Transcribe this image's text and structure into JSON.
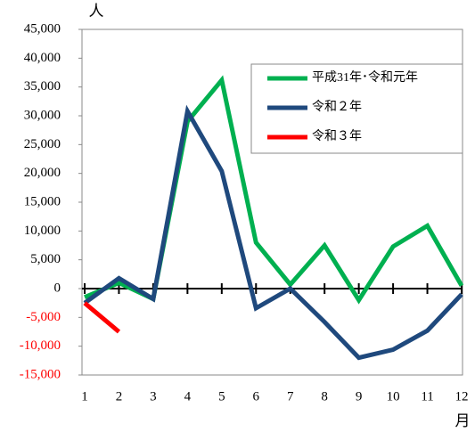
{
  "chart_data": {
    "type": "line",
    "y_unit": "人",
    "x_unit": "月",
    "categories": [
      "1",
      "2",
      "3",
      "4",
      "5",
      "6",
      "7",
      "8",
      "9",
      "10",
      "11",
      "12"
    ],
    "series": [
      {
        "name": "平成31年･令和元年",
        "color": "#00b050",
        "values": [
          -1500,
          1000,
          -1800,
          29000,
          36200,
          8000,
          700,
          7500,
          -2000,
          7300,
          10900,
          500
        ]
      },
      {
        "name": "令和２年",
        "color": "#1f497d",
        "values": [
          -2500,
          1800,
          -1800,
          30800,
          20400,
          -3400,
          0,
          -5800,
          -12000,
          -10600,
          -7300,
          -1000
        ]
      },
      {
        "name": "令和３年",
        "color": "#ff0000",
        "values": [
          -2500,
          -7500,
          null,
          null,
          null,
          null,
          null,
          null,
          null,
          null,
          null,
          null
        ]
      }
    ],
    "ylim": [
      -15000,
      45000
    ],
    "yticks": [
      {
        "value": -15000,
        "label": "-15,000"
      },
      {
        "value": -10000,
        "label": "-10,000"
      },
      {
        "value": -5000,
        "label": "-5,000"
      },
      0,
      {
        "value": 5000,
        "label": "5,000"
      },
      {
        "value": 10000,
        "label": "10,000"
      },
      {
        "value": 15000,
        "label": "15,000"
      },
      {
        "value": 20000,
        "label": "20,000"
      },
      {
        "value": 25000,
        "label": "25,000"
      },
      {
        "value": 30000,
        "label": "30,000"
      },
      {
        "value": 35000,
        "label": "35,000"
      },
      {
        "value": 40000,
        "label": "40,000"
      },
      {
        "value": 45000,
        "label": "45,000"
      }
    ],
    "negative_label_color": "#ff0000",
    "legend": "upper right"
  }
}
